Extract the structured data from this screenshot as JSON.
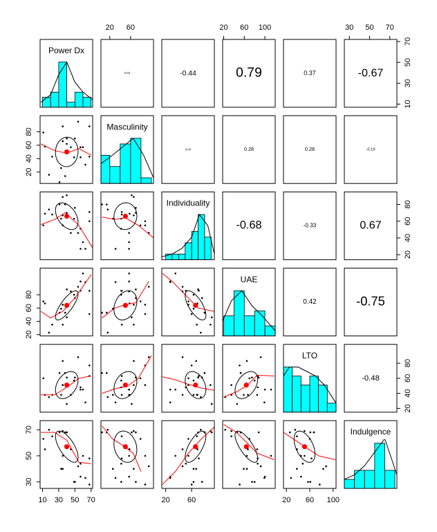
{
  "chart_data": {
    "type": "pairs",
    "variables": [
      "Power Dx",
      "Masculinity",
      "Individuality",
      "UAE",
      "LTO",
      "Indulgence"
    ],
    "lims": [
      [
        7,
        72
      ],
      [
        3,
        104
      ],
      [
        14,
        95
      ],
      [
        18,
        120
      ],
      [
        15,
        105
      ],
      [
        25,
        77
      ]
    ],
    "xticks": [
      [
        10,
        30,
        50,
        70
      ],
      [
        20,
        60
      ],
      [
        20,
        60
      ],
      [
        20,
        60,
        100
      ],
      [
        20,
        60,
        100
      ],
      [
        30,
        50,
        70
      ]
    ],
    "yticks": [
      [
        10,
        30,
        50,
        70
      ],
      [
        20,
        40,
        60,
        80
      ],
      [
        20,
        40,
        60,
        80
      ],
      [
        20,
        40,
        60,
        80
      ],
      [
        20,
        40,
        60,
        80
      ],
      [
        30,
        50,
        70
      ]
    ],
    "hist_color": "#00ffff",
    "smooth_color": "#ff0000",
    "histograms": [
      {
        "bins": [
          10,
          20,
          30,
          40,
          50,
          60,
          70
        ],
        "counts": [
          2,
          3,
          9,
          1,
          3,
          2
        ],
        "density_x": [
          8,
          20,
          30,
          40,
          50,
          60,
          72
        ],
        "density_y": [
          1,
          2.5,
          6.5,
          9,
          5,
          3,
          1.5
        ]
      },
      {
        "bins": [
          0,
          20,
          40,
          60,
          80,
          100
        ],
        "counts": [
          5,
          3,
          7,
          8,
          1
        ],
        "density_x": [
          3,
          25,
          45,
          65,
          85,
          104
        ],
        "density_y": [
          3.5,
          5,
          6.5,
          8,
          5,
          1
        ]
      },
      {
        "bins": [
          20,
          30,
          40,
          50,
          60,
          70,
          80,
          90
        ],
        "counts": [
          1,
          1,
          1,
          3,
          5,
          8,
          4
        ],
        "density_x": [
          14,
          30,
          45,
          60,
          72,
          85,
          95
        ],
        "density_y": [
          0.5,
          1,
          2,
          4,
          8,
          6,
          1
        ]
      },
      {
        "bins": [
          20,
          40,
          60,
          80,
          100,
          120
        ],
        "counts": [
          4,
          9,
          4,
          5,
          2
        ],
        "density_x": [
          18,
          35,
          55,
          75,
          95,
          120
        ],
        "density_y": [
          3,
          7,
          9,
          6,
          4,
          1
        ]
      },
      {
        "bins": [
          15,
          30,
          45,
          60,
          75,
          90,
          105
        ],
        "counts": [
          5,
          4,
          3,
          4,
          3,
          1
        ],
        "density_x": [
          15,
          25,
          40,
          55,
          70,
          85,
          105
        ],
        "density_y": [
          4,
          5,
          5,
          4.5,
          4,
          3,
          1
        ]
      },
      {
        "bins": [
          25,
          35,
          45,
          55,
          65,
          75
        ],
        "counts": [
          1,
          2,
          2,
          5,
          2
        ],
        "density_x": [
          25,
          35,
          45,
          55,
          65,
          77
        ],
        "density_y": [
          1,
          1.5,
          2.5,
          4,
          5.5,
          1.5
        ]
      }
    ],
    "means": [
      40,
      50,
      66,
      64,
      51,
      57
    ],
    "sds": [
      14,
      22,
      16,
      22,
      18,
      12
    ],
    "correlations": [
      0.03,
      -0.44,
      0.79,
      0.37,
      -0.67,
      0.04,
      0.28,
      0.28,
      -0.19,
      -0.68,
      -0.33,
      0.67,
      0.42,
      -0.75,
      -0.48
    ],
    "smooths": [
      {
        "x": [
          8,
          25,
          40,
          55,
          70
        ],
        "y": [
          62,
          52,
          48,
          55,
          45
        ]
      },
      {
        "x": [
          8,
          25,
          38,
          55,
          72
        ],
        "y": [
          56,
          62,
          70,
          55,
          28
        ]
      },
      {
        "x": [
          8,
          20,
          35,
          50,
          70
        ],
        "y": [
          55,
          45,
          55,
          75,
          110
        ]
      },
      {
        "x": [
          8,
          25,
          40,
          55,
          70
        ],
        "y": [
          38,
          38,
          48,
          60,
          63
        ]
      },
      {
        "x": [
          8,
          25,
          40,
          55,
          70
        ],
        "y": [
          68,
          68,
          62,
          45,
          44
        ]
      },
      {
        "x": [
          5,
          30,
          50,
          75,
          104
        ],
        "y": [
          65,
          62,
          64,
          55,
          40
        ]
      },
      {
        "x": [
          5,
          30,
          50,
          70,
          95
        ],
        "y": [
          45,
          60,
          65,
          68,
          100
        ]
      },
      {
        "x": [
          5,
          30,
          55,
          75,
          100
        ],
        "y": [
          40,
          46,
          50,
          60,
          90
        ]
      },
      {
        "x": [
          5,
          25,
          45,
          65,
          80
        ],
        "y": [
          73,
          63,
          58,
          52,
          38
        ]
      },
      {
        "x": [
          15,
          30,
          50,
          70,
          95
        ],
        "y": [
          112,
          100,
          80,
          60,
          55
        ]
      },
      {
        "x": [
          15,
          35,
          55,
          75,
          95
        ],
        "y": [
          62,
          58,
          52,
          47,
          44
        ]
      },
      {
        "x": [
          15,
          35,
          55,
          75,
          95
        ],
        "y": [
          28,
          38,
          52,
          63,
          72
        ]
      },
      {
        "x": [
          20,
          45,
          65,
          85,
          118
        ],
        "y": [
          35,
          42,
          50,
          64,
          63
        ]
      },
      {
        "x": [
          20,
          45,
          65,
          85,
          118
        ],
        "y": [
          74,
          68,
          60,
          52,
          47
        ]
      },
      {
        "x": [
          15,
          35,
          55,
          75,
          104
        ],
        "y": [
          68,
          62,
          56,
          50,
          47
        ]
      }
    ],
    "observations": [
      [
        11,
        79,
        55,
        70,
        60,
        63
      ],
      [
        18,
        16,
        74,
        23,
        35,
        70
      ],
      [
        22,
        43,
        68,
        35,
        38,
        65
      ],
      [
        31,
        5,
        80,
        53,
        67,
        68
      ],
      [
        33,
        26,
        63,
        59,
        38,
        40
      ],
      [
        35,
        66,
        67,
        65,
        83,
        40
      ],
      [
        38,
        14,
        80,
        53,
        67,
        68
      ],
      [
        35,
        66,
        89,
        35,
        51,
        69
      ],
      [
        40,
        62,
        91,
        46,
        26,
        68
      ],
      [
        40,
        70,
        70,
        88,
        61,
        68
      ],
      [
        45,
        57,
        46,
        85,
        38,
        55
      ],
      [
        49,
        42,
        63,
        80,
        57,
        30
      ],
      [
        54,
        95,
        46,
        92,
        88,
        42
      ],
      [
        57,
        57,
        27,
        100,
        45,
        34
      ],
      [
        60,
        57,
        35,
        112,
        45,
        50
      ],
      [
        63,
        31,
        27,
        99,
        28,
        33
      ],
      [
        68,
        43,
        71,
        86,
        63,
        48
      ],
      [
        57,
        42,
        51,
        86,
        48,
        44
      ],
      [
        50,
        70,
        76,
        75,
        61,
        30
      ],
      [
        68,
        88,
        60,
        51,
        77,
        28
      ],
      [
        35,
        88,
        55,
        65,
        51,
        50
      ],
      [
        13,
        58,
        69,
        67,
        38,
        55
      ]
    ]
  }
}
